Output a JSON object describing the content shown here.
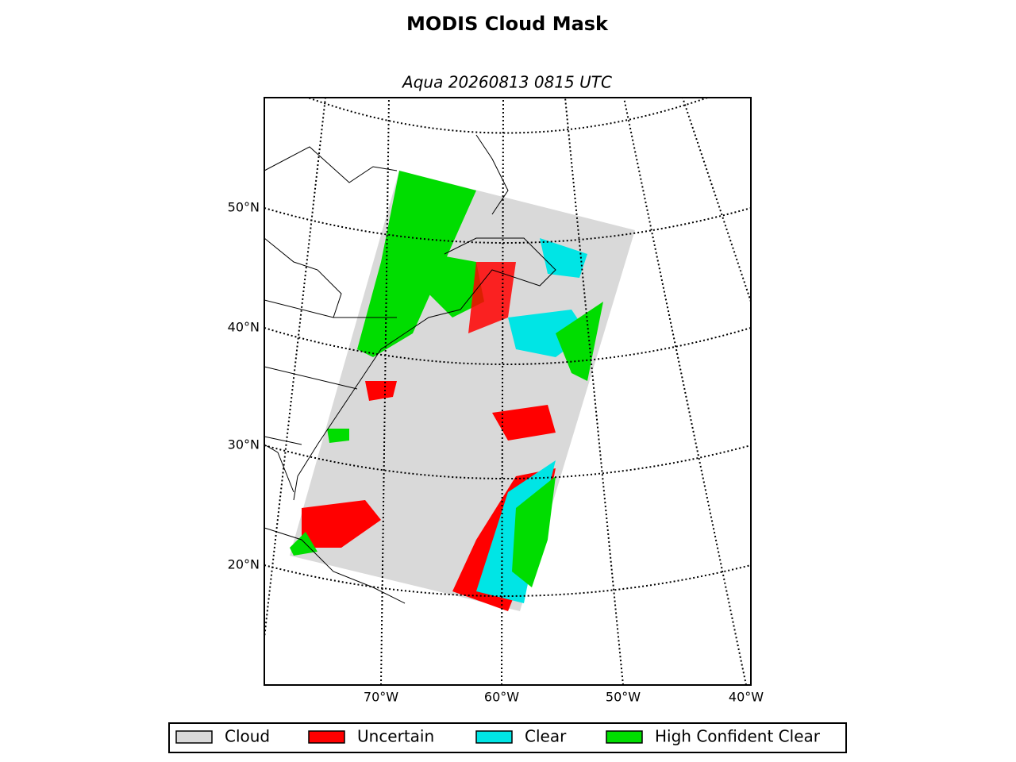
{
  "title": "MODIS Cloud Mask",
  "subtitle": "Aqua 20260813 0815 UTC",
  "map": {
    "lat_labels": [
      "50°N",
      "40°N",
      "30°N",
      "20°N"
    ],
    "lon_labels": [
      "70°W",
      "60°W",
      "50°W",
      "40°W"
    ]
  },
  "legend": [
    {
      "label": "Cloud",
      "color": "#d9d9d9"
    },
    {
      "label": "Uncertain",
      "color": "#ff0000"
    },
    {
      "label": "Clear",
      "color": "#00e5e5"
    },
    {
      "label": "High Confident Clear",
      "color": "#00dd00"
    }
  ]
}
